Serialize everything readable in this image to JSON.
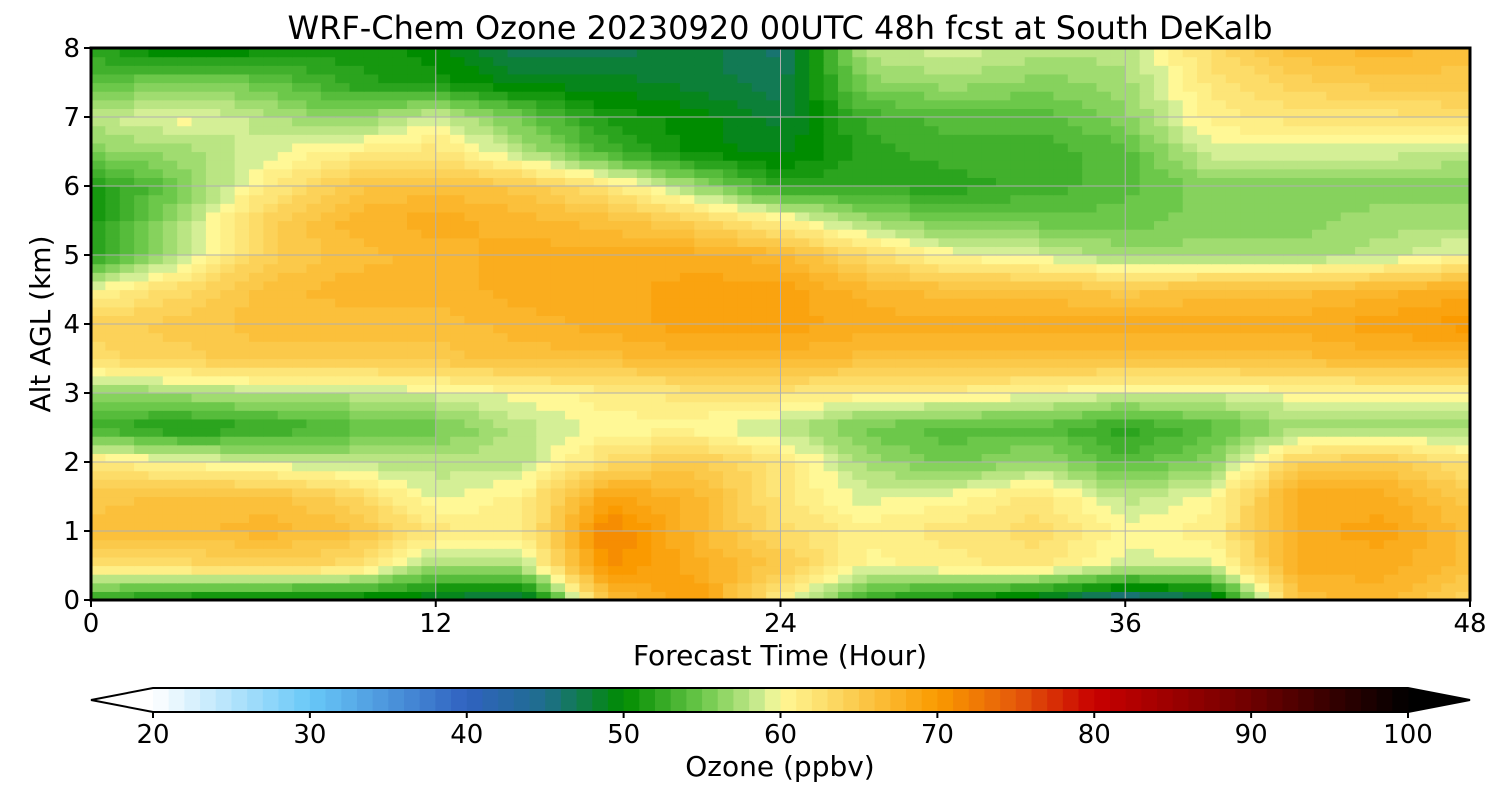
{
  "chart_data": {
    "type": "heatmap",
    "title": "WRF-Chem Ozone  20230920 00UTC 48h fcst at South DeKalb",
    "xlabel": "Forecast Time (Hour)",
    "ylabel": "Alt AGL (km)",
    "xlim": [
      0,
      48
    ],
    "ylim": [
      0,
      8
    ],
    "x_ticks": [
      "0",
      "12",
      "24",
      "36",
      "48"
    ],
    "y_ticks": [
      "0",
      "1",
      "2",
      "3",
      "4",
      "5",
      "6",
      "7",
      "8"
    ],
    "grid": true,
    "x": [
      0,
      3,
      6,
      9,
      12,
      15,
      18,
      21,
      24,
      27,
      30,
      33,
      36,
      39,
      42,
      45,
      48
    ],
    "y": [
      0,
      0.5,
      1,
      1.5,
      2,
      2.5,
      3,
      3.5,
      4,
      4.5,
      5,
      5.5,
      6,
      6.5,
      7,
      7.5,
      8
    ],
    "z": [
      [
        52,
        50,
        49,
        49,
        48,
        46,
        66,
        70,
        61,
        52,
        50,
        48,
        44,
        47,
        66,
        67,
        64
      ],
      [
        62,
        63,
        64,
        63,
        57,
        58,
        71,
        68,
        65,
        60,
        61,
        62,
        59,
        59,
        68,
        68,
        66
      ],
      [
        66,
        66,
        67,
        66,
        62,
        61,
        72,
        67,
        63,
        61,
        62,
        63,
        60,
        61,
        68,
        69,
        66
      ],
      [
        65,
        66,
        66,
        64,
        59,
        61,
        69,
        67,
        62,
        59,
        60,
        62,
        58,
        60,
        68,
        68,
        65
      ],
      [
        62,
        60,
        59,
        58,
        58,
        58,
        63,
        65,
        62,
        57,
        55,
        57,
        54,
        56,
        64,
        65,
        62
      ],
      [
        53,
        51,
        52,
        54,
        55,
        58,
        60,
        60,
        58,
        55,
        54,
        54,
        52,
        54,
        57,
        57,
        57
      ],
      [
        56,
        57,
        58,
        58,
        59,
        60,
        61,
        62,
        62,
        61,
        61,
        60,
        59,
        59,
        60,
        60,
        60
      ],
      [
        63,
        64,
        65,
        65,
        65,
        66,
        66,
        67,
        67,
        66,
        66,
        66,
        66,
        66,
        66,
        67,
        67
      ],
      [
        64,
        65,
        66,
        66,
        66,
        67,
        68,
        69,
        69,
        68,
        68,
        68,
        68,
        68,
        68,
        69,
        70
      ],
      [
        60,
        63,
        66,
        67,
        67,
        68,
        68,
        69,
        69,
        67,
        66,
        66,
        65,
        66,
        66,
        67,
        68
      ],
      [
        52,
        58,
        64,
        66,
        67,
        68,
        68,
        68,
        67,
        63,
        60,
        59,
        57,
        57,
        57,
        58,
        60
      ],
      [
        51,
        57,
        64,
        67,
        68,
        67,
        66,
        64,
        61,
        57,
        55,
        55,
        55,
        56,
        56,
        57,
        57
      ],
      [
        51,
        55,
        61,
        65,
        66,
        65,
        62,
        57,
        52,
        52,
        52,
        53,
        54,
        56,
        56,
        56,
        56
      ],
      [
        56,
        57,
        59,
        61,
        62,
        58,
        53,
        50,
        49,
        52,
        53,
        53,
        54,
        59,
        59,
        59,
        58
      ],
      [
        58,
        60,
        58,
        56,
        59,
        55,
        51,
        50,
        48,
        53,
        54,
        54,
        56,
        61,
        62,
        62,
        63
      ],
      [
        54,
        56,
        55,
        52,
        51,
        49,
        49,
        48,
        47,
        56,
        57,
        56,
        57,
        62,
        64,
        65,
        65
      ],
      [
        52,
        49,
        50,
        51,
        50,
        47,
        47,
        48,
        46,
        58,
        59,
        58,
        58,
        63,
        66,
        67,
        66
      ]
    ],
    "colorbar": {
      "label": "Ozone  (ppbv)",
      "range": [
        20,
        100
      ],
      "ticks": [
        "20",
        "30",
        "40",
        "50",
        "60",
        "70",
        "80",
        "90",
        "100"
      ],
      "extend": "both",
      "colormap": [
        [
          20,
          "#ffffff"
        ],
        [
          30,
          "#68c8f8"
        ],
        [
          40,
          "#3062c0"
        ],
        [
          45,
          "#1e6e8c"
        ],
        [
          50,
          "#008c00"
        ],
        [
          55,
          "#6cc84a"
        ],
        [
          59,
          "#d4ef96"
        ],
        [
          60,
          "#fff896"
        ],
        [
          65,
          "#fbc94a"
        ],
        [
          70,
          "#fa9a00"
        ],
        [
          75,
          "#e55a0a"
        ],
        [
          80,
          "#c80000"
        ],
        [
          90,
          "#6e0000"
        ],
        [
          100,
          "#000000"
        ]
      ]
    }
  }
}
